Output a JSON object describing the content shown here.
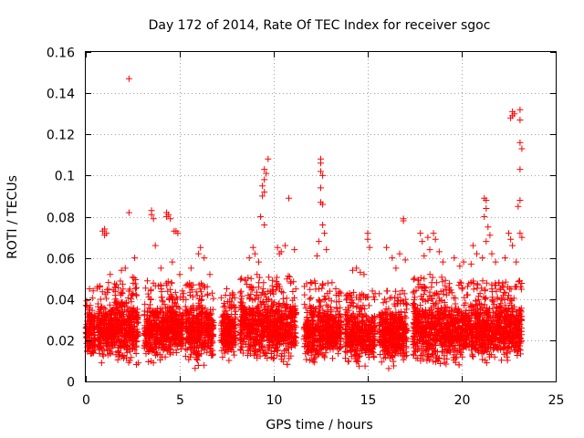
{
  "chart_data": {
    "type": "scatter",
    "title": "Day 172 of 2014, Rate Of TEC Index for receiver sgoc",
    "xlabel": "GPS time / hours",
    "ylabel": "ROTI / TECUs",
    "xlim": [
      0,
      25
    ],
    "ylim": [
      0,
      0.16
    ],
    "xticks": [
      "0",
      "5",
      "10",
      "15",
      "20",
      "25"
    ],
    "yticks": [
      "0",
      "0.02",
      "0.04",
      "0.06",
      "0.08",
      "0.1",
      "0.12",
      "0.14",
      "0.16"
    ],
    "grid": true,
    "marker": "+",
    "color": "#ff0000",
    "series": [
      {
        "name": "ROTI",
        "clusters": [
          {
            "x": [
              0.0,
              0.5
            ],
            "core": [
              0.008,
              0.04
            ],
            "spikes": [
              [
                0.2,
                0.045
              ],
              [
                0.4,
                0.044
              ]
            ]
          },
          {
            "x": [
              0.6,
              1.5
            ],
            "core": [
              0.006,
              0.045
            ],
            "spikes": [
              [
                1.0,
                0.074
              ],
              [
                1.0,
                0.071
              ],
              [
                1.1,
                0.072
              ],
              [
                0.9,
                0.073
              ],
              [
                1.3,
                0.052
              ]
            ]
          },
          {
            "x": [
              1.5,
              2.8
            ],
            "core": [
              0.005,
              0.048
            ],
            "spikes": [
              [
                2.3,
                0.147
              ],
              [
                2.3,
                0.082
              ],
              [
                2.1,
                0.055
              ],
              [
                2.6,
                0.06
              ],
              [
                1.9,
                0.054
              ]
            ]
          },
          {
            "x": [
              3.1,
              4.6
            ],
            "core": [
              0.005,
              0.045
            ],
            "spikes": [
              [
                3.5,
                0.083
              ],
              [
                3.5,
                0.081
              ],
              [
                3.6,
                0.079
              ],
              [
                4.3,
                0.082
              ],
              [
                4.3,
                0.08
              ],
              [
                4.4,
                0.081
              ],
              [
                4.5,
                0.079
              ],
              [
                3.7,
                0.066
              ],
              [
                4.0,
                0.055
              ],
              [
                4.7,
                0.073
              ]
            ]
          },
          {
            "x": [
              4.6,
              5.2
            ],
            "core": [
              0.01,
              0.04
            ],
            "spikes": [
              [
                4.8,
                0.073
              ],
              [
                4.9,
                0.072
              ],
              [
                4.6,
                0.058
              ],
              [
                5.0,
                0.052
              ]
            ]
          },
          {
            "x": [
              5.3,
              6.8
            ],
            "core": [
              0.005,
              0.045
            ],
            "spikes": [
              [
                5.6,
                0.055
              ],
              [
                6.0,
                0.062
              ],
              [
                6.1,
                0.065
              ],
              [
                6.3,
                0.06
              ],
              [
                6.6,
                0.052
              ]
            ]
          },
          {
            "x": [
              7.2,
              8.0
            ],
            "core": [
              0.008,
              0.04
            ],
            "spikes": [
              [
                7.5,
                0.045
              ],
              [
                7.8,
                0.043
              ]
            ]
          },
          {
            "x": [
              8.2,
              10.0
            ],
            "core": [
              0.006,
              0.048
            ],
            "spikes": [
              [
                9.5,
                0.103
              ],
              [
                9.6,
                0.101
              ],
              [
                9.5,
                0.098
              ],
              [
                9.4,
                0.095
              ],
              [
                9.7,
                0.108
              ],
              [
                9.5,
                0.092
              ],
              [
                9.4,
                0.09
              ],
              [
                9.3,
                0.08
              ],
              [
                9.5,
                0.076
              ],
              [
                8.9,
                0.065
              ],
              [
                9.0,
                0.062
              ],
              [
                9.2,
                0.058
              ],
              [
                8.7,
                0.06
              ]
            ]
          },
          {
            "x": [
              10.0,
              11.2
            ],
            "core": [
              0.005,
              0.048
            ],
            "spikes": [
              [
                10.8,
                0.089
              ],
              [
                10.2,
                0.065
              ],
              [
                10.4,
                0.063
              ],
              [
                10.6,
                0.066
              ],
              [
                11.1,
                0.064
              ],
              [
                10.3,
                0.062
              ]
            ]
          },
          {
            "x": [
              11.6,
              12.9
            ],
            "core": [
              0.005,
              0.045
            ],
            "spikes": [
              [
                12.5,
                0.108
              ],
              [
                12.5,
                0.106
              ],
              [
                12.5,
                0.102
              ],
              [
                12.6,
                0.1
              ],
              [
                12.5,
                0.094
              ],
              [
                12.5,
                0.087
              ],
              [
                12.6,
                0.086
              ],
              [
                12.6,
                0.076
              ],
              [
                12.7,
                0.072
              ],
              [
                12.8,
                0.064
              ],
              [
                12.4,
                0.068
              ],
              [
                12.3,
                0.061
              ]
            ]
          },
          {
            "x": [
              12.9,
              13.6
            ],
            "core": [
              0.008,
              0.04
            ],
            "spikes": [
              [
                13.1,
                0.048
              ],
              [
                13.3,
                0.045
              ]
            ]
          },
          {
            "x": [
              13.8,
              15.4
            ],
            "core": [
              0.005,
              0.04
            ],
            "spikes": [
              [
                14.2,
                0.054
              ],
              [
                14.4,
                0.055
              ],
              [
                14.6,
                0.053
              ],
              [
                14.8,
                0.052
              ],
              [
                15.0,
                0.072
              ],
              [
                15.0,
                0.069
              ],
              [
                15.1,
                0.065
              ]
            ]
          },
          {
            "x": [
              15.6,
              17.1
            ],
            "core": [
              0.005,
              0.042
            ],
            "spikes": [
              [
                16.0,
                0.065
              ],
              [
                16.3,
                0.06
              ],
              [
                16.7,
                0.062
              ],
              [
                16.9,
                0.079
              ],
              [
                16.9,
                0.078
              ],
              [
                17.0,
                0.059
              ],
              [
                16.5,
                0.055
              ]
            ]
          },
          {
            "x": [
              17.4,
              19.2
            ],
            "core": [
              0.003,
              0.048
            ],
            "spikes": [
              [
                17.8,
                0.072
              ],
              [
                17.9,
                0.068
              ],
              [
                18.2,
                0.07
              ],
              [
                18.3,
                0.064
              ],
              [
                18.5,
                0.072
              ],
              [
                18.6,
                0.069
              ],
              [
                18.0,
                0.061
              ],
              [
                18.8,
                0.063
              ],
              [
                19.0,
                0.058
              ]
            ]
          },
          {
            "x": [
              19.2,
              20.3
            ],
            "core": [
              0.005,
              0.045
            ],
            "spikes": [
              [
                19.6,
                0.06
              ],
              [
                19.9,
                0.056
              ],
              [
                20.1,
                0.058
              ]
            ]
          },
          {
            "x": [
              20.3,
              21.0
            ],
            "core": [
              0.008,
              0.045
            ],
            "spikes": [
              [
                20.6,
                0.066
              ],
              [
                20.8,
                0.062
              ],
              [
                20.5,
                0.057
              ]
            ]
          },
          {
            "x": [
              21.0,
              22.0
            ],
            "core": [
              0.005,
              0.045
            ],
            "spikes": [
              [
                21.2,
                0.089
              ],
              [
                21.3,
                0.088
              ],
              [
                21.3,
                0.084
              ],
              [
                21.2,
                0.08
              ],
              [
                21.4,
                0.075
              ],
              [
                21.5,
                0.071
              ],
              [
                21.3,
                0.068
              ],
              [
                21.6,
                0.062
              ],
              [
                21.1,
                0.06
              ],
              [
                21.8,
                0.058
              ]
            ]
          },
          {
            "x": [
              22.0,
              23.2
            ],
            "core": [
              0.005,
              0.045
            ],
            "spikes": [
              [
                22.7,
                0.131
              ],
              [
                22.7,
                0.129
              ],
              [
                22.8,
                0.13
              ],
              [
                22.6,
                0.128
              ],
              [
                23.1,
                0.132
              ],
              [
                23.1,
                0.127
              ],
              [
                23.1,
                0.116
              ],
              [
                23.2,
                0.113
              ],
              [
                23.1,
                0.103
              ],
              [
                23.1,
                0.088
              ],
              [
                23.0,
                0.085
              ],
              [
                23.1,
                0.072
              ],
              [
                23.2,
                0.07
              ],
              [
                22.5,
                0.072
              ],
              [
                22.6,
                0.069
              ],
              [
                22.7,
                0.066
              ],
              [
                22.3,
                0.06
              ],
              [
                22.9,
                0.058
              ]
            ]
          }
        ]
      }
    ]
  }
}
